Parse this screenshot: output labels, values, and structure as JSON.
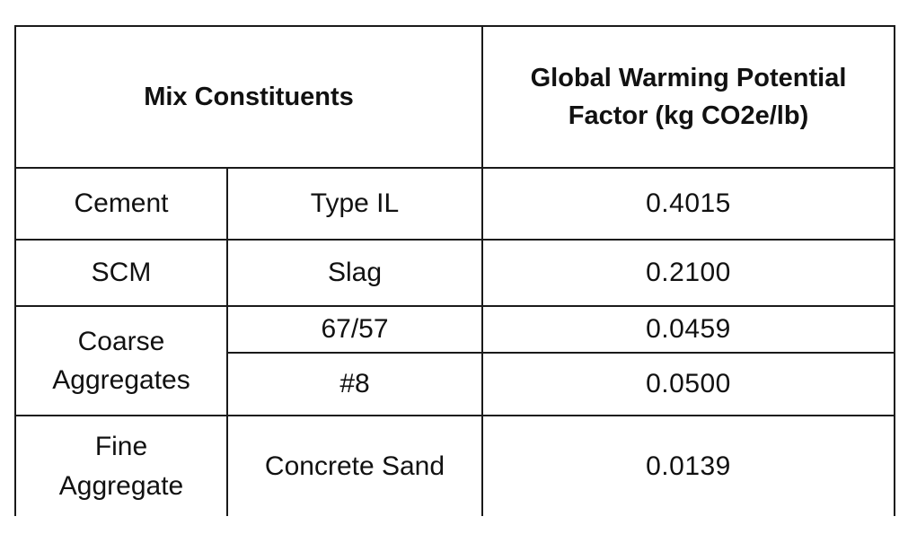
{
  "header": {
    "mix_constituents": "Mix Constituents",
    "gwp_factor_line1": "Global Warming Potential",
    "gwp_factor_line2": "Factor (kg CO2e/lb)"
  },
  "rows": [
    {
      "category": "Cement",
      "type": "Type IL",
      "value": "0.4015"
    },
    {
      "category": "SCM",
      "type": "Slag",
      "value": "0.2100"
    },
    {
      "category_line1": "Coarse",
      "category_line2": "Aggregates",
      "type": "67/57",
      "value": "0.0459"
    },
    {
      "type": "#8",
      "value": "0.0500"
    },
    {
      "category_line1": "Fine",
      "category_line2": "Aggregate",
      "type": "Concrete Sand",
      "value": "0.0139"
    }
  ]
}
